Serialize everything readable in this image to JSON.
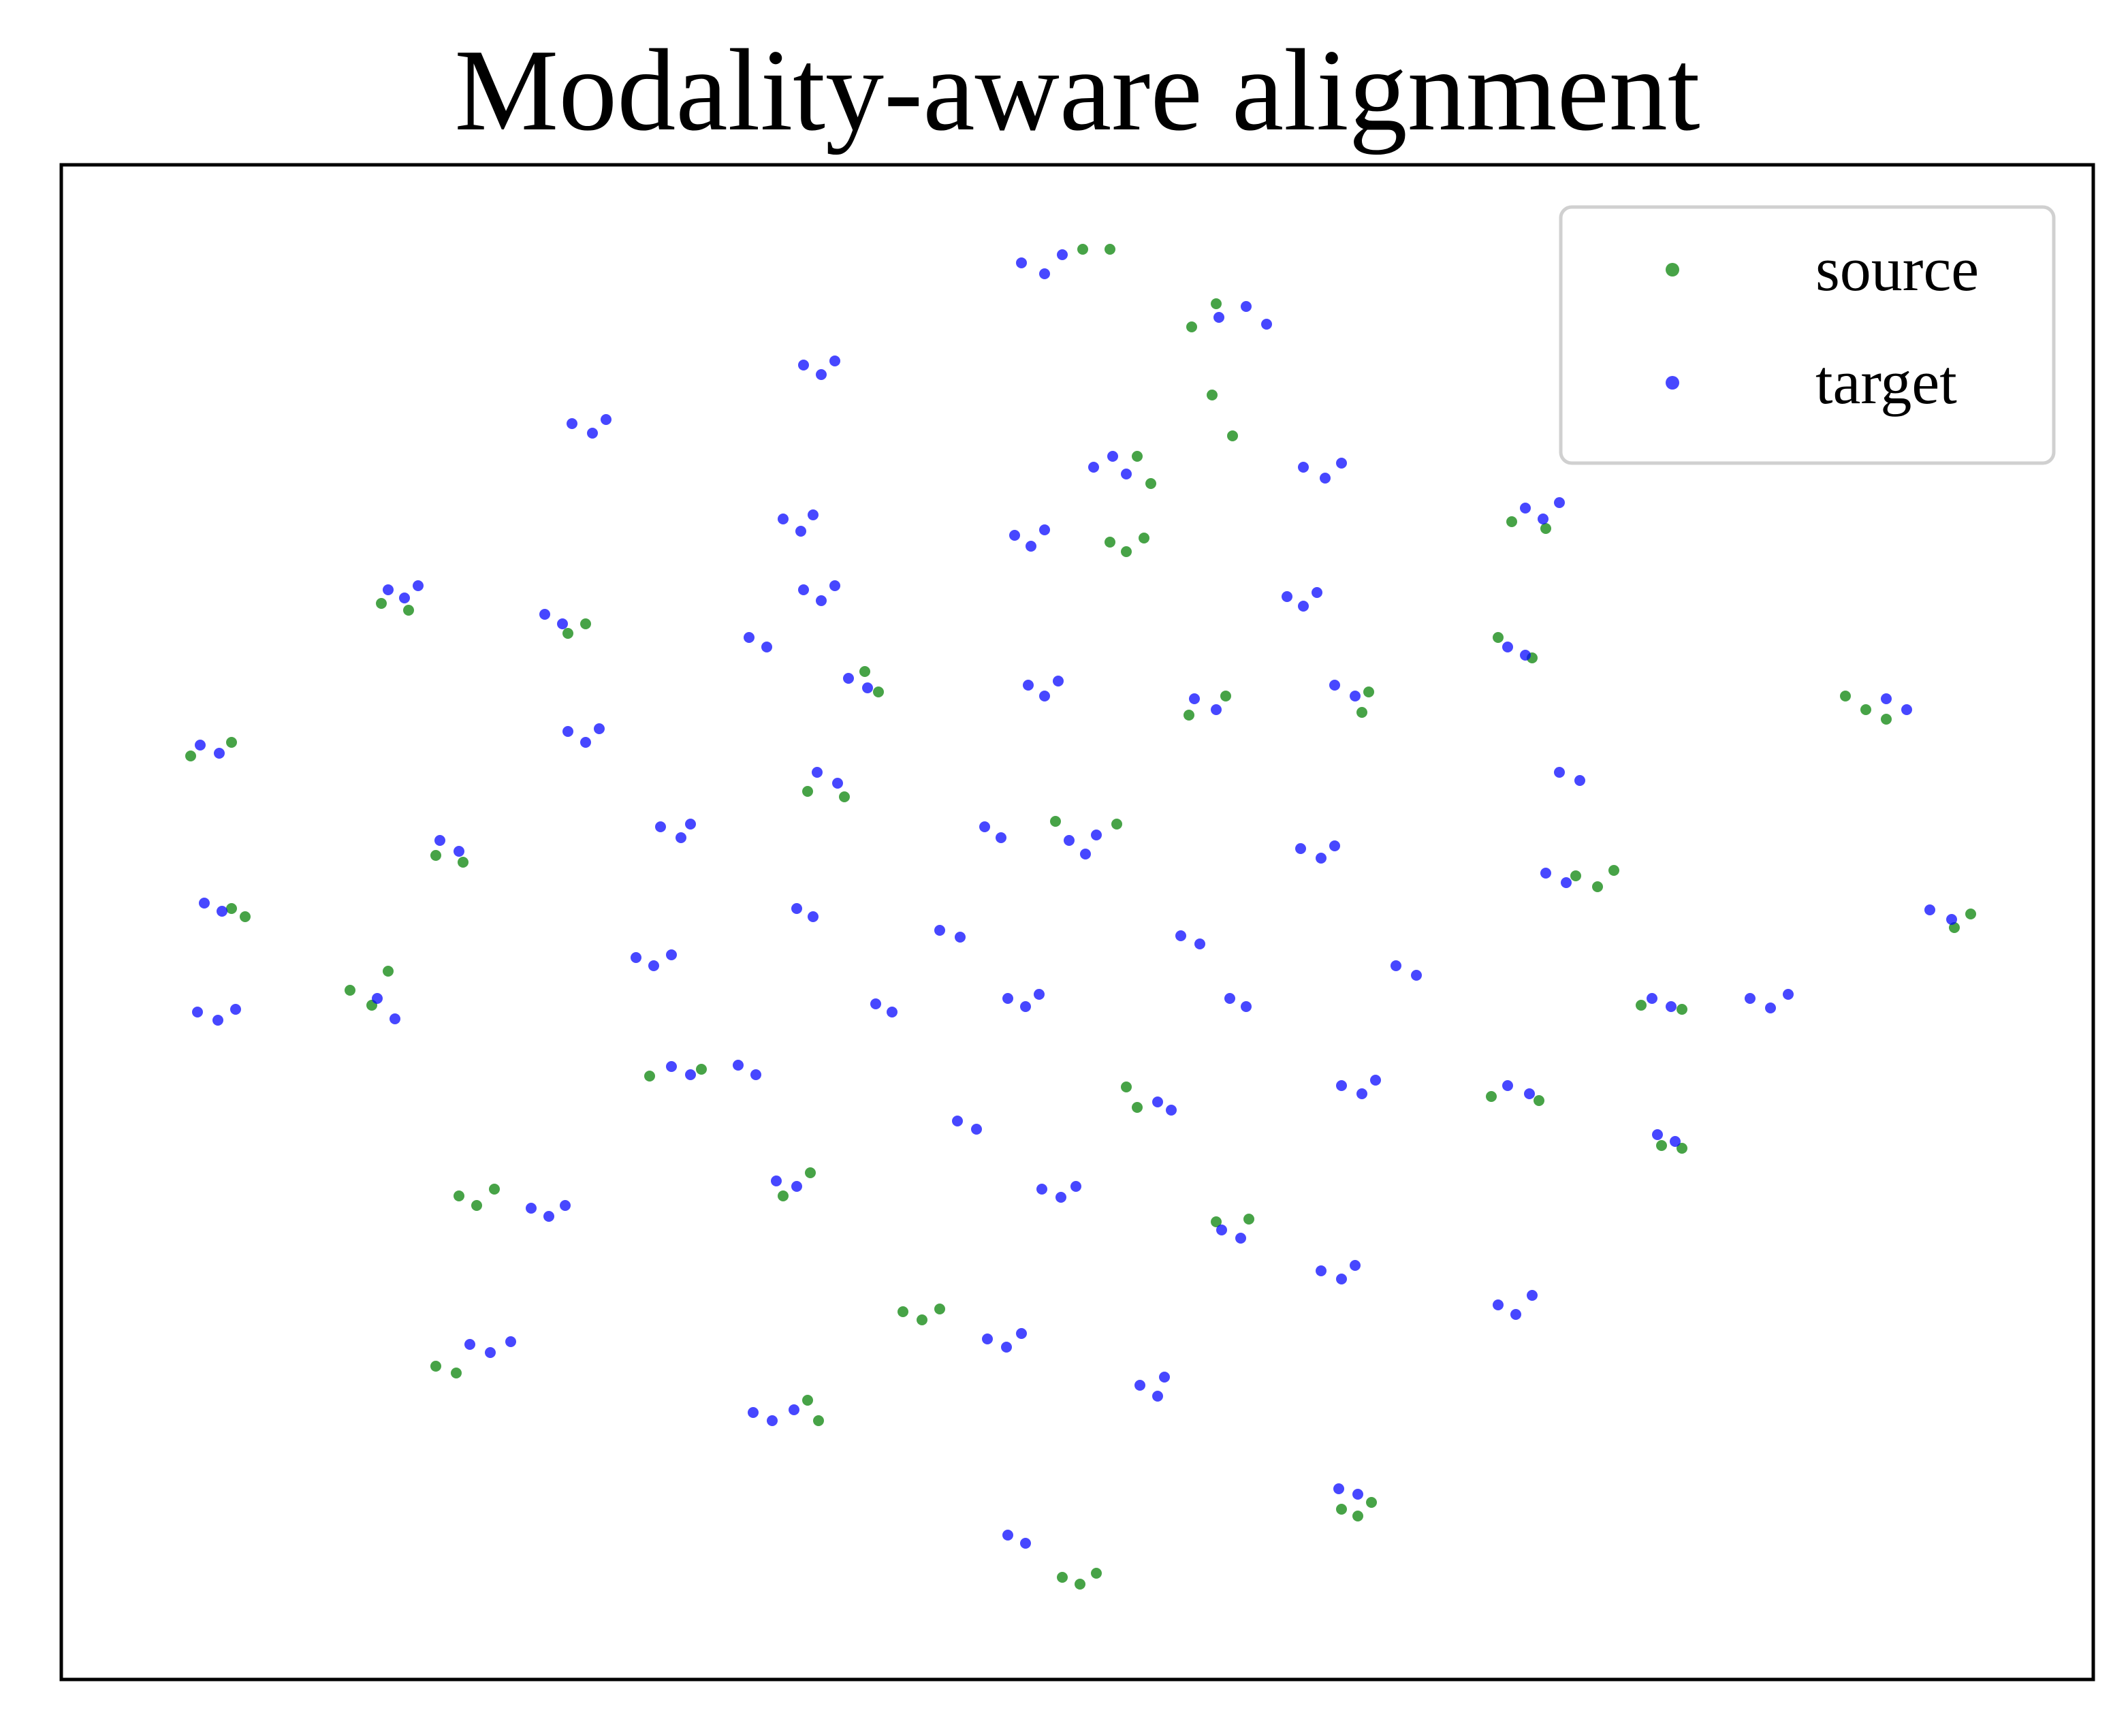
{
  "chart_data": {
    "type": "scatter",
    "title": "Modality-aware alignment",
    "xlim": [
      0,
      1492
    ],
    "ylim": [
      0,
      1112
    ],
    "legend": "upper right",
    "series": [
      {
        "name": "source",
        "color": "#008000",
        "x": [
          750,
          770,
          830,
          848,
          790,
          800,
          1065,
          1090,
          770,
          782,
          795,
          235,
          255,
          372,
          385,
          1080,
          1055,
          590,
          600,
          828,
          855,
          960,
          955,
          1310,
          1325,
          1340,
          95,
          125,
          548,
          575,
          275,
          295,
          730,
          775,
          1112,
          1128,
          1140,
          1390,
          1402,
          125,
          135,
          1160,
          1190,
          212,
          228,
          240,
          432,
          470,
          782,
          790,
          1050,
          1085,
          1175,
          1190,
          530,
          550,
          292,
          305,
          318,
          848,
          872,
          618,
          632,
          645,
          275,
          290,
          548,
          556,
          940,
          952,
          962,
          735,
          748,
          760,
          845,
          860
        ],
        "values": [
          1050,
          1050,
          993,
          1010,
          898,
          878,
          850,
          845,
          835,
          828,
          838,
          790,
          785,
          768,
          775,
          750,
          765,
          740,
          725,
          708,
          722,
          725,
          710,
          722,
          712,
          705,
          678,
          688,
          652,
          648,
          605,
          600,
          630,
          628,
          590,
          582,
          594,
          552,
          562,
          566,
          560,
          495,
          492,
          506,
          495,
          520,
          443,
          448,
          435,
          420,
          428,
          425,
          392,
          390,
          355,
          372,
          355,
          348,
          360,
          336,
          338,
          270,
          264,
          272,
          230,
          225,
          205,
          190,
          125,
          120,
          130,
          75,
          70,
          78,
          943,
          913
        ]
      },
      {
        "name": "target",
        "color": "#0000ff",
        "x": [
          705,
          722,
          735,
          850,
          870,
          885,
          545,
          558,
          568,
          375,
          390,
          400,
          758,
          772,
          782,
          912,
          928,
          940,
          1075,
          1088,
          1100,
          530,
          543,
          552,
          700,
          712,
          722,
          240,
          252,
          262,
          355,
          368,
          545,
          558,
          568,
          900,
          912,
          922,
          1062,
          1075,
          505,
          518,
          578,
          592,
          710,
          722,
          732,
          832,
          848,
          935,
          950,
          1340,
          1355,
          102,
          116,
          372,
          385,
          395,
          555,
          570,
          1100,
          1115,
          278,
          292,
          440,
          455,
          462,
          740,
          752,
          760,
          678,
          690,
          910,
          925,
          935,
          1090,
          1105,
          1372,
          1388,
          105,
          118,
          540,
          552,
          645,
          660,
          822,
          836,
          422,
          435,
          448,
          980,
          995,
          1168,
          1182,
          1240,
          1255,
          1268,
          100,
          115,
          128,
          232,
          245,
          598,
          610,
          695,
          708,
          718,
          858,
          870,
          448,
          462,
          497,
          510,
          805,
          815,
          940,
          955,
          965,
          1062,
          1078,
          658,
          672,
          1172,
          1185,
          525,
          540,
          345,
          358,
          370,
          720,
          734,
          745,
          852,
          866,
          925,
          940,
          950,
          1055,
          1068,
          1080,
          680,
          694,
          705,
          300,
          315,
          330,
          792,
          805,
          810,
          508,
          522,
          538,
          938,
          952,
          695,
          708
        ],
        "values": [
          1040,
          1032,
          1046,
          1000,
          1008,
          995,
          965,
          958,
          968,
          922,
          915,
          925,
          890,
          898,
          885,
          890,
          882,
          893,
          860,
          852,
          864,
          852,
          843,
          855,
          840,
          832,
          844,
          800,
          794,
          803,
          782,
          775,
          800,
          792,
          803,
          795,
          788,
          798,
          758,
          752,
          765,
          758,
          735,
          728,
          730,
          722,
          733,
          720,
          712,
          730,
          722,
          720,
          712,
          686,
          680,
          696,
          688,
          698,
          666,
          658,
          666,
          660,
          616,
          608,
          626,
          618,
          628,
          616,
          606,
          620,
          626,
          618,
          610,
          603,
          612,
          592,
          585,
          565,
          558,
          570,
          564,
          566,
          560,
          550,
          545,
          546,
          540,
          530,
          524,
          532,
          524,
          517,
          500,
          494,
          500,
          493,
          503,
          490,
          484,
          492,
          500,
          485,
          496,
          490,
          500,
          494,
          503,
          500,
          494,
          450,
          444,
          451,
          444,
          424,
          418,
          436,
          430,
          440,
          436,
          430,
          410,
          404,
          400,
          395,
          366,
          362,
          346,
          340,
          348,
          360,
          354,
          362,
          330,
          324,
          300,
          294,
          304,
          275,
          268,
          282,
          250,
          244,
          254,
          246,
          240,
          248,
          216,
          208,
          222,
          196,
          190,
          198,
          140,
          136,
          106,
          100
        ]
      }
    ]
  }
}
